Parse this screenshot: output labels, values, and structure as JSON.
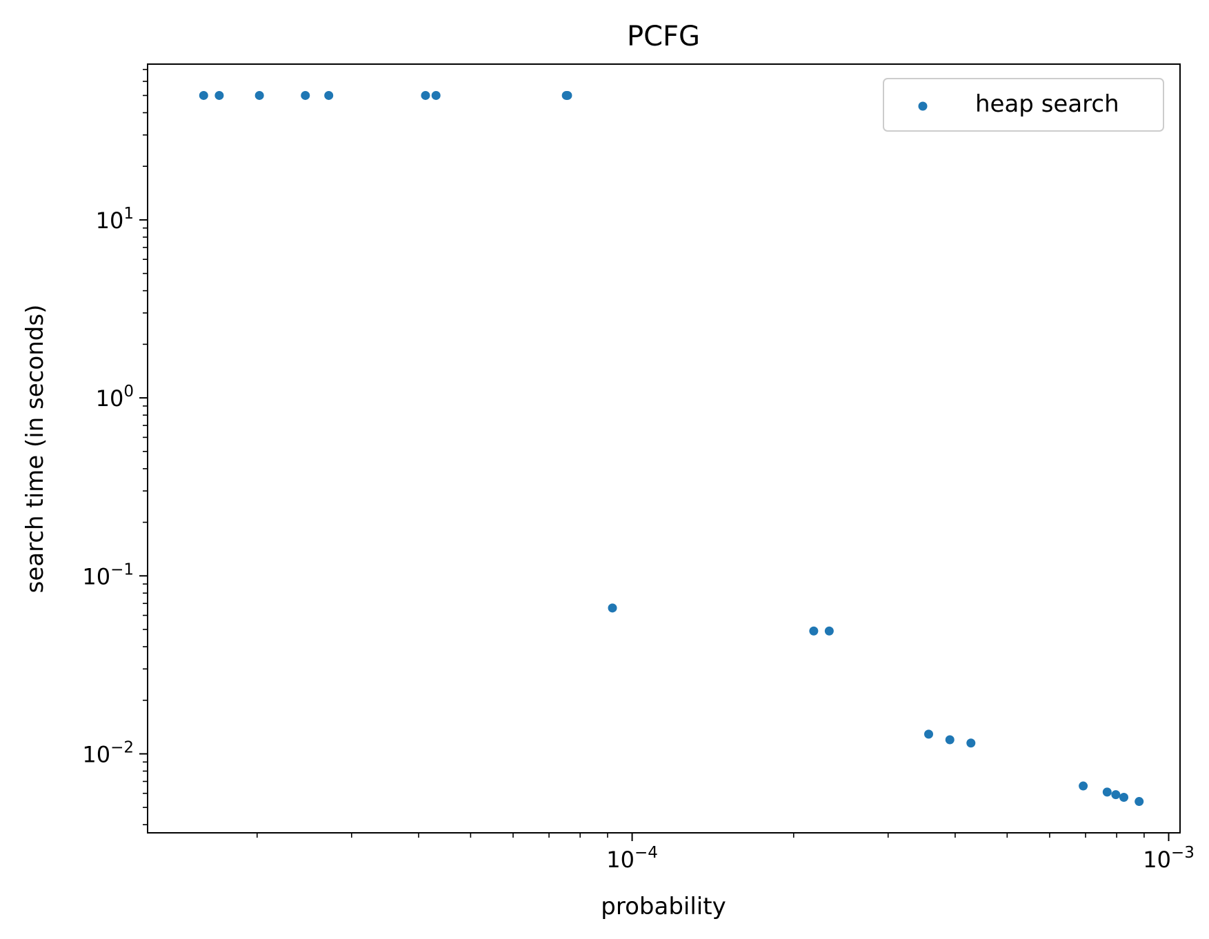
{
  "chart_data": {
    "type": "scatter",
    "title": "PCFG",
    "xlabel": "probability",
    "ylabel": "search time (in seconds)",
    "xscale": "log",
    "yscale": "log",
    "xlim": [
      1.25e-05,
      0.00105
    ],
    "ylim": [
      0.0036,
      75
    ],
    "grid": false,
    "legend": {
      "placement": "top-right",
      "entries": [
        "heap search"
      ]
    },
    "x_ticks": [
      {
        "value": 0.0001,
        "base": "10",
        "exp": "−4"
      },
      {
        "value": 0.001,
        "base": "10",
        "exp": "−3"
      }
    ],
    "y_ticks": [
      {
        "value": 10,
        "base": "10",
        "exp": "1"
      },
      {
        "value": 1,
        "base": "10",
        "exp": "0"
      },
      {
        "value": 0.1,
        "base": "10",
        "exp": "−1"
      },
      {
        "value": 0.01,
        "base": "10",
        "exp": "−2"
      }
    ],
    "series": [
      {
        "name": "heap search",
        "color": "#1f77b4",
        "points": [
          {
            "x": 1.59e-05,
            "y": 50
          },
          {
            "x": 1.7e-05,
            "y": 50
          },
          {
            "x": 2.02e-05,
            "y": 50
          },
          {
            "x": 2.46e-05,
            "y": 50
          },
          {
            "x": 2.72e-05,
            "y": 50
          },
          {
            "x": 4.12e-05,
            "y": 50
          },
          {
            "x": 4.31e-05,
            "y": 50
          },
          {
            "x": 7.54e-05,
            "y": 50
          },
          {
            "x": 7.58e-05,
            "y": 50
          },
          {
            "x": 9.19e-05,
            "y": 0.066
          },
          {
            "x": 0.000218,
            "y": 0.049
          },
          {
            "x": 0.000233,
            "y": 0.049
          },
          {
            "x": 0.000357,
            "y": 0.0129
          },
          {
            "x": 0.000391,
            "y": 0.012
          },
          {
            "x": 0.000428,
            "y": 0.0115
          },
          {
            "x": 0.000693,
            "y": 0.0066
          },
          {
            "x": 0.000768,
            "y": 0.0061
          },
          {
            "x": 0.000797,
            "y": 0.0059
          },
          {
            "x": 0.000825,
            "y": 0.0057
          },
          {
            "x": 0.000881,
            "y": 0.0054
          }
        ]
      }
    ]
  }
}
